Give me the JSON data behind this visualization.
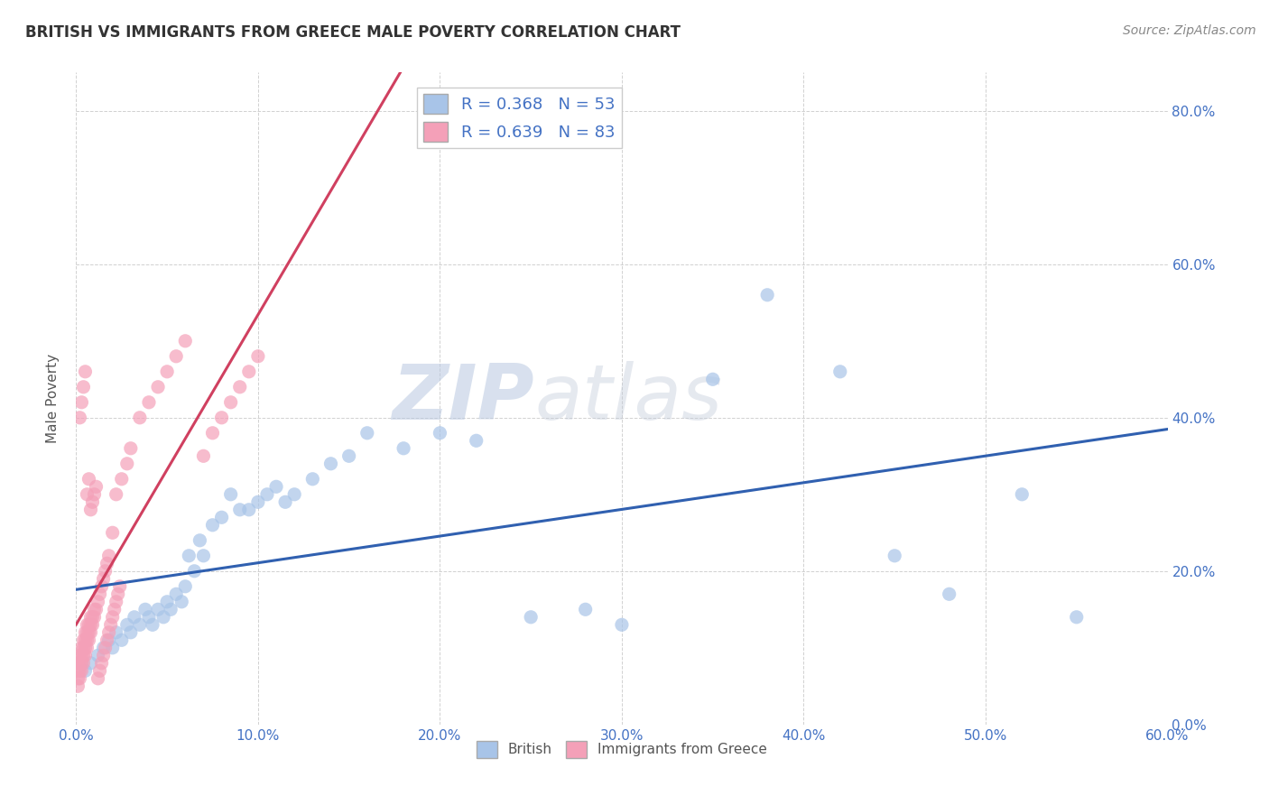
{
  "title": "BRITISH VS IMMIGRANTS FROM GREECE MALE POVERTY CORRELATION CHART",
  "source": "Source: ZipAtlas.com",
  "xlabel_ticks": [
    "0.0%",
    "10.0%",
    "20.0%",
    "30.0%",
    "40.0%",
    "50.0%",
    "60.0%"
  ],
  "ylabel_ticks": [
    "0.0%",
    "20.0%",
    "40.0%",
    "60.0%",
    "80.0%"
  ],
  "xlim": [
    0.0,
    0.6
  ],
  "ylim": [
    0.0,
    0.85
  ],
  "legend_british_R": "0.368",
  "legend_british_N": "53",
  "legend_greece_R": "0.639",
  "legend_greece_N": "83",
  "british_color": "#a8c4e8",
  "greece_color": "#f4a0b8",
  "british_line_color": "#3060b0",
  "greece_line_color": "#d04060",
  "watermark_zip": "ZIP",
  "watermark_atlas": "atlas",
  "british_x": [
    0.005,
    0.008,
    0.012,
    0.015,
    0.018,
    0.02,
    0.022,
    0.025,
    0.028,
    0.03,
    0.032,
    0.035,
    0.038,
    0.04,
    0.042,
    0.045,
    0.048,
    0.05,
    0.052,
    0.055,
    0.058,
    0.06,
    0.062,
    0.065,
    0.068,
    0.07,
    0.075,
    0.08,
    0.085,
    0.09,
    0.095,
    0.1,
    0.105,
    0.11,
    0.115,
    0.12,
    0.13,
    0.14,
    0.15,
    0.16,
    0.18,
    0.2,
    0.22,
    0.25,
    0.28,
    0.3,
    0.35,
    0.38,
    0.42,
    0.45,
    0.48,
    0.52,
    0.55
  ],
  "british_y": [
    0.07,
    0.08,
    0.09,
    0.1,
    0.11,
    0.1,
    0.12,
    0.11,
    0.13,
    0.12,
    0.14,
    0.13,
    0.15,
    0.14,
    0.13,
    0.15,
    0.14,
    0.16,
    0.15,
    0.17,
    0.16,
    0.18,
    0.22,
    0.2,
    0.24,
    0.22,
    0.26,
    0.27,
    0.3,
    0.28,
    0.28,
    0.29,
    0.3,
    0.31,
    0.29,
    0.3,
    0.32,
    0.34,
    0.35,
    0.38,
    0.36,
    0.38,
    0.37,
    0.14,
    0.15,
    0.13,
    0.45,
    0.56,
    0.46,
    0.22,
    0.17,
    0.3,
    0.14
  ],
  "greece_x": [
    0.001,
    0.001,
    0.001,
    0.001,
    0.002,
    0.002,
    0.002,
    0.002,
    0.003,
    0.003,
    0.003,
    0.003,
    0.004,
    0.004,
    0.004,
    0.004,
    0.005,
    0.005,
    0.005,
    0.005,
    0.006,
    0.006,
    0.006,
    0.006,
    0.007,
    0.007,
    0.007,
    0.008,
    0.008,
    0.008,
    0.009,
    0.009,
    0.01,
    0.01,
    0.011,
    0.012,
    0.013,
    0.014,
    0.015,
    0.016,
    0.017,
    0.018,
    0.02,
    0.022,
    0.025,
    0.028,
    0.03,
    0.035,
    0.04,
    0.045,
    0.05,
    0.055,
    0.06,
    0.07,
    0.075,
    0.08,
    0.085,
    0.09,
    0.095,
    0.1,
    0.002,
    0.003,
    0.004,
    0.005,
    0.006,
    0.007,
    0.008,
    0.009,
    0.01,
    0.011,
    0.012,
    0.013,
    0.014,
    0.015,
    0.016,
    0.017,
    0.018,
    0.019,
    0.02,
    0.021,
    0.022,
    0.023,
    0.024
  ],
  "greece_y": [
    0.05,
    0.06,
    0.07,
    0.08,
    0.06,
    0.07,
    0.08,
    0.09,
    0.07,
    0.08,
    0.09,
    0.1,
    0.08,
    0.09,
    0.1,
    0.11,
    0.09,
    0.1,
    0.11,
    0.12,
    0.1,
    0.11,
    0.12,
    0.13,
    0.11,
    0.12,
    0.13,
    0.12,
    0.13,
    0.14,
    0.13,
    0.14,
    0.14,
    0.15,
    0.15,
    0.16,
    0.17,
    0.18,
    0.19,
    0.2,
    0.21,
    0.22,
    0.25,
    0.3,
    0.32,
    0.34,
    0.36,
    0.4,
    0.42,
    0.44,
    0.46,
    0.48,
    0.5,
    0.35,
    0.38,
    0.4,
    0.42,
    0.44,
    0.46,
    0.48,
    0.4,
    0.42,
    0.44,
    0.46,
    0.3,
    0.32,
    0.28,
    0.29,
    0.3,
    0.31,
    0.06,
    0.07,
    0.08,
    0.09,
    0.1,
    0.11,
    0.12,
    0.13,
    0.14,
    0.15,
    0.16,
    0.17,
    0.18
  ]
}
